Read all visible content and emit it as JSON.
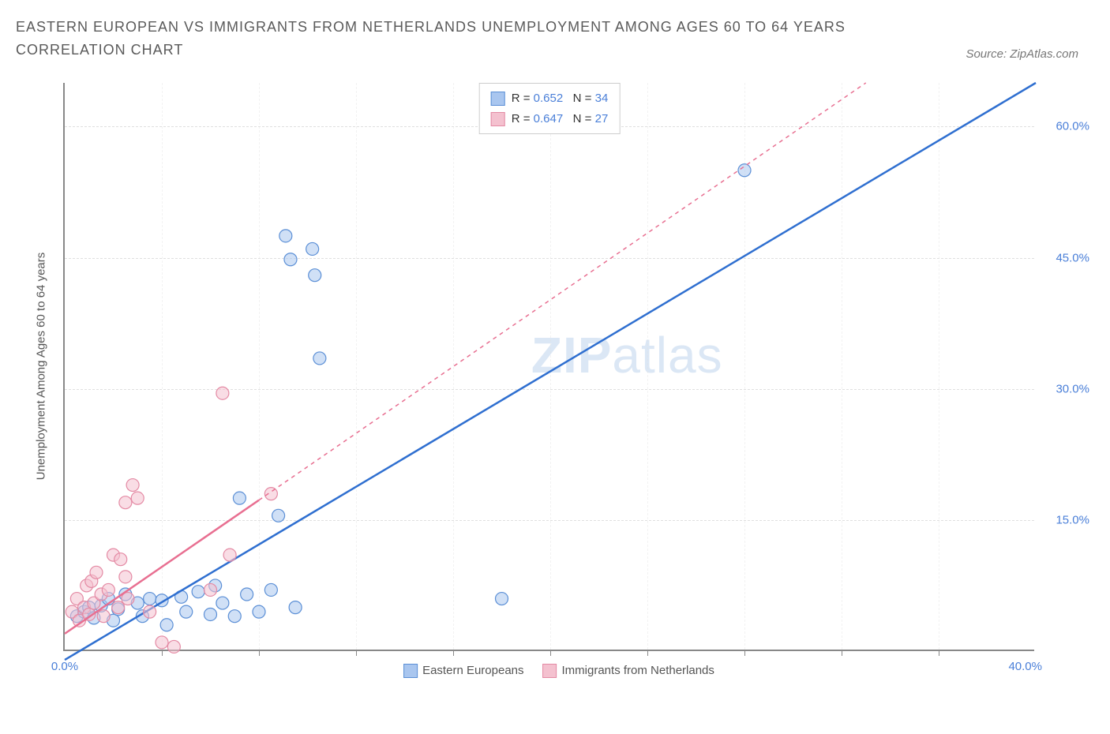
{
  "title": "EASTERN EUROPEAN VS IMMIGRANTS FROM NETHERLANDS UNEMPLOYMENT AMONG AGES 60 TO 64 YEARS CORRELATION CHART",
  "source_label": "Source: ZipAtlas.com",
  "watermark_bold": "ZIP",
  "watermark_light": "atlas",
  "y_axis_label": "Unemployment Among Ages 60 to 64 years",
  "chart": {
    "type": "scatter",
    "xlim": [
      0,
      40
    ],
    "ylim": [
      0,
      65
    ],
    "x_origin_label": "0.0%",
    "x_end_label": "40.0%",
    "y_ticks": [
      15,
      30,
      45,
      60
    ],
    "y_tick_labels": [
      "15.0%",
      "30.0%",
      "45.0%",
      "60.0%"
    ],
    "x_minor_ticks": [
      4,
      8,
      12,
      16,
      20,
      24,
      28,
      32,
      36
    ],
    "background_color": "#ffffff",
    "grid_color": "#e0e0e0",
    "axis_color": "#888888",
    "label_color_blue": "#4a7fd8",
    "marker_radius": 8,
    "marker_opacity": 0.55,
    "series": [
      {
        "name": "Eastern Europeans",
        "color_fill": "#a9c6ef",
        "color_stroke": "#5b8fd6",
        "line_color": "#2f6fd0",
        "line_width": 2.5,
        "line_dash": "none",
        "R": "0.652",
        "N": "34",
        "trend": {
          "x1": 0,
          "y1": -1,
          "x2": 40,
          "y2": 65
        },
        "points": [
          [
            0.5,
            4.0
          ],
          [
            0.8,
            4.5
          ],
          [
            1.0,
            5.0
          ],
          [
            1.2,
            3.8
          ],
          [
            1.5,
            5.2
          ],
          [
            1.8,
            6.0
          ],
          [
            2.0,
            3.5
          ],
          [
            2.2,
            4.8
          ],
          [
            2.5,
            6.5
          ],
          [
            3.0,
            5.5
          ],
          [
            3.2,
            4.0
          ],
          [
            3.5,
            6.0
          ],
          [
            4.0,
            5.8
          ],
          [
            4.2,
            3.0
          ],
          [
            4.8,
            6.2
          ],
          [
            5.0,
            4.5
          ],
          [
            5.5,
            6.8
          ],
          [
            6.0,
            4.2
          ],
          [
            6.2,
            7.5
          ],
          [
            6.5,
            5.5
          ],
          [
            7.0,
            4.0
          ],
          [
            7.2,
            17.5
          ],
          [
            7.5,
            6.5
          ],
          [
            8.0,
            4.5
          ],
          [
            8.5,
            7.0
          ],
          [
            8.8,
            15.5
          ],
          [
            9.5,
            5.0
          ],
          [
            9.1,
            47.5
          ],
          [
            9.3,
            44.8
          ],
          [
            10.2,
            46.0
          ],
          [
            10.3,
            43.0
          ],
          [
            10.5,
            33.5
          ],
          [
            18.0,
            6.0
          ],
          [
            28.0,
            55.0
          ]
        ]
      },
      {
        "name": "Immigrants from Netherlands",
        "color_fill": "#f4c1cf",
        "color_stroke": "#e48aa4",
        "line_color": "#e86f91",
        "line_width": 2.5,
        "line_dash": "5,5",
        "R": "0.647",
        "N": "27",
        "trend_solid_end": 8,
        "trend": {
          "x1": 0,
          "y1": 2,
          "x2": 33,
          "y2": 65
        },
        "points": [
          [
            0.3,
            4.5
          ],
          [
            0.5,
            6.0
          ],
          [
            0.6,
            3.5
          ],
          [
            0.8,
            5.0
          ],
          [
            0.9,
            7.5
          ],
          [
            1.0,
            4.2
          ],
          [
            1.1,
            8.0
          ],
          [
            1.2,
            5.5
          ],
          [
            1.3,
            9.0
          ],
          [
            1.5,
            6.5
          ],
          [
            1.6,
            4.0
          ],
          [
            1.8,
            7.0
          ],
          [
            2.0,
            11.0
          ],
          [
            2.2,
            5.0
          ],
          [
            2.3,
            10.5
          ],
          [
            2.5,
            8.5
          ],
          [
            2.5,
            17.0
          ],
          [
            2.6,
            6.0
          ],
          [
            2.8,
            19.0
          ],
          [
            3.0,
            17.5
          ],
          [
            3.5,
            4.5
          ],
          [
            4.0,
            1.0
          ],
          [
            4.5,
            0.5
          ],
          [
            6.0,
            7.0
          ],
          [
            6.5,
            29.5
          ],
          [
            6.8,
            11.0
          ],
          [
            8.5,
            18.0
          ]
        ]
      }
    ]
  },
  "stats_legend": {
    "rows": [
      {
        "swatch_fill": "#a9c6ef",
        "swatch_stroke": "#5b8fd6",
        "r_label": "R =",
        "r_val": "0.652",
        "n_label": "N =",
        "n_val": "34"
      },
      {
        "swatch_fill": "#f4c1cf",
        "swatch_stroke": "#e48aa4",
        "r_label": "R =",
        "r_val": "0.647",
        "n_label": "N =",
        "n_val": "27"
      }
    ]
  },
  "bottom_legend": {
    "items": [
      {
        "swatch_fill": "#a9c6ef",
        "swatch_stroke": "#5b8fd6",
        "label": "Eastern Europeans"
      },
      {
        "swatch_fill": "#f4c1cf",
        "swatch_stroke": "#e48aa4",
        "label": "Immigrants from Netherlands"
      }
    ]
  }
}
